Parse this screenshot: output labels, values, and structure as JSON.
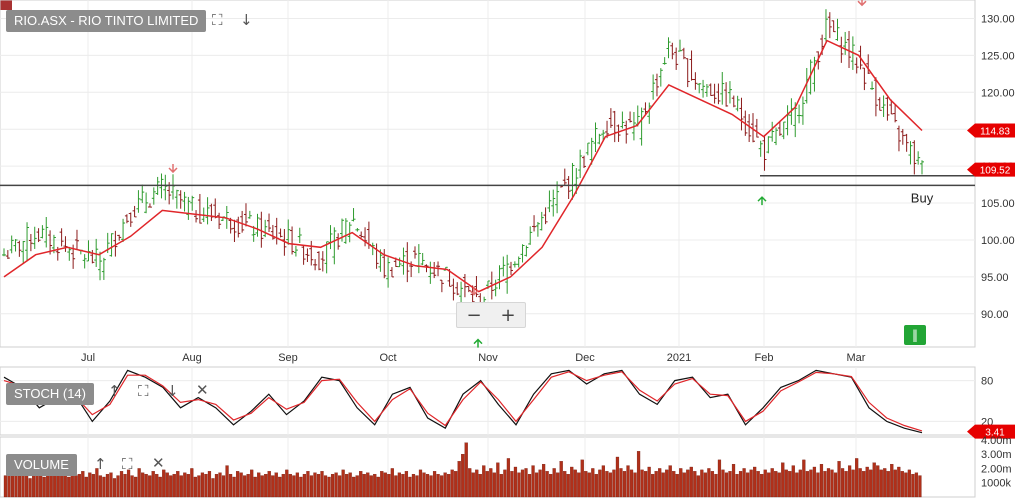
{
  "toolbar": {
    "main_title": "RIO.ASX - RIO TINTO LIMITED",
    "stoch_title": "STOCH (14)",
    "volume_title": "VOLUME",
    "expand_icon": "expand-icon",
    "download_icon": "download-icon",
    "close_icon": "close-icon",
    "zoom_out": "−",
    "zoom_in": "+",
    "green_marker": "‖"
  },
  "colors": {
    "ma_line": "#e0262a",
    "up_bar": "#2e9b2e",
    "down_bar": "#8b1a1a",
    "volume_bar": "#b0301a",
    "stoch_k": "#111111",
    "stoch_d": "#e0262a",
    "badge": "#e60000",
    "support_line": "#444444",
    "down_arrow": "#e07070",
    "up_arrow": "#22aa33"
  },
  "chart_data": [
    {
      "type": "line",
      "panel": "price",
      "title": "RIO.ASX - RIO TINTO LIMITED",
      "x_tick_labels": [
        "Jul",
        "Aug",
        "Sep",
        "Oct",
        "Nov",
        "Dec",
        "2021",
        "Feb",
        "Mar"
      ],
      "y_ticks": [
        90.0,
        95.0,
        100.0,
        105.0,
        110.0,
        115.0,
        120.0,
        125.0,
        130.0
      ],
      "y_tick_labels": [
        "90.00",
        "95.00",
        "100.00",
        "105.00",
        "110.00",
        "115.00",
        "120.00",
        "125.00",
        "130.00"
      ],
      "ylim": [
        85.5,
        132.5
      ],
      "grid": true,
      "price_series_points": [
        {
          "x": "start",
          "y": 98.0
        },
        {
          "x": "Jun end",
          "y": 101.0
        },
        {
          "x": "Jul early",
          "y": 99.0
        },
        {
          "x": "Jul mid",
          "y": 97.0
        },
        {
          "x": "Jul late",
          "y": 104.0
        },
        {
          "x": "Jul end",
          "y": 107.0
        },
        {
          "x": "Aug early",
          "y": 104.0
        },
        {
          "x": "Aug mid",
          "y": 103.0
        },
        {
          "x": "Aug late",
          "y": 101.5
        },
        {
          "x": "Sep early",
          "y": 100.0
        },
        {
          "x": "Sep mid",
          "y": 97.5
        },
        {
          "x": "Sep late",
          "y": 103.0
        },
        {
          "x": "Oct early",
          "y": 96.0
        },
        {
          "x": "Oct mid",
          "y": 97.5
        },
        {
          "x": "Oct late",
          "y": 95.0
        },
        {
          "x": "Nov early",
          "y": 91.5
        },
        {
          "x": "Nov mid",
          "y": 97.0
        },
        {
          "x": "Nov late",
          "y": 103.0
        },
        {
          "x": "Dec early",
          "y": 109.0
        },
        {
          "x": "Dec mid",
          "y": 116.0
        },
        {
          "x": "Dec late",
          "y": 115.0
        },
        {
          "x": "2021 early",
          "y": 126.0
        },
        {
          "x": "Jan mid",
          "y": 121.0
        },
        {
          "x": "Jan late",
          "y": 119.0
        },
        {
          "x": "Feb early",
          "y": 112.0
        },
        {
          "x": "Feb mid",
          "y": 117.0
        },
        {
          "x": "Feb late",
          "y": 129.0
        },
        {
          "x": "Mar early",
          "y": 124.0
        },
        {
          "x": "Mar mid",
          "y": 116.0
        },
        {
          "x": "end",
          "y": 109.52
        }
      ],
      "series": [
        {
          "name": "",
          "values": [
            95.0,
            98.0,
            99.0,
            98.0,
            100.5,
            104.0,
            103.5,
            103.0,
            101.5,
            99.5,
            99.0,
            101.0,
            98.0,
            96.5,
            96.0,
            93.0,
            95.0,
            99.0,
            106.0,
            114.0,
            115.5,
            121.0,
            119.0,
            117.0,
            114.0,
            118.0,
            127.0,
            125.0,
            119.0,
            114.83
          ]
        }
      ],
      "last_price_label": "109.52",
      "ma_label": "114.83",
      "horizontal_lines": [
        107.4,
        108.7
      ],
      "annotations": [
        "Buy"
      ]
    },
    {
      "type": "line",
      "panel": "stochastic",
      "title": "STOCH (14)",
      "y_tick_labels": [
        "80",
        "20"
      ],
      "ylim": [
        0,
        100
      ],
      "last_value_label": "3.41",
      "series": [
        {
          "name": "",
          "values": [
            85,
            70,
            40,
            55,
            60,
            20,
            50,
            95,
            85,
            70,
            40,
            55,
            40,
            15,
            35,
            60,
            30,
            50,
            85,
            80,
            40,
            15,
            60,
            70,
            25,
            10,
            60,
            80,
            45,
            15,
            60,
            90,
            95,
            75,
            90,
            95,
            60,
            45,
            80,
            85,
            55,
            60,
            15,
            40,
            70,
            80,
            95,
            90,
            85,
            40,
            20,
            10,
            3.41
          ]
        },
        {
          "name": "",
          "values": [
            80,
            72,
            50,
            52,
            58,
            30,
            45,
            88,
            88,
            72,
            48,
            52,
            45,
            22,
            32,
            55,
            38,
            48,
            80,
            82,
            48,
            20,
            52,
            68,
            32,
            14,
            52,
            78,
            52,
            20,
            52,
            85,
            93,
            80,
            88,
            93,
            66,
            50,
            75,
            83,
            60,
            58,
            20,
            35,
            65,
            78,
            92,
            90,
            86,
            48,
            25,
            14,
            6
          ]
        }
      ]
    },
    {
      "type": "bar",
      "panel": "volume",
      "title": "VOLUME",
      "y_tick_labels": [
        "4.00m",
        "3.00m",
        "2.00m",
        "1000k"
      ],
      "y_ticks": [
        4.0,
        3.0,
        2.0,
        1.0
      ],
      "ylim": [
        0,
        4.2
      ],
      "values": [
        1.5,
        1.6,
        1.7,
        1.8,
        1.5,
        1.6,
        1.7,
        1.3,
        1.9,
        1.5,
        1.8,
        1.4,
        1.6,
        1.7,
        1.5,
        1.8,
        1.6,
        2.3,
        1.4,
        1.7,
        1.5,
        1.6,
        1.8,
        1.4,
        1.7,
        1.6,
        2.0,
        1.5,
        1.4,
        1.6,
        1.7,
        1.3,
        1.5,
        1.8,
        1.6,
        1.9,
        1.5,
        1.4,
        2.0,
        1.7,
        1.6,
        1.5,
        1.8,
        1.6,
        1.4,
        1.9,
        1.7,
        1.5,
        1.6,
        1.8,
        1.5,
        1.7,
        1.6,
        2.0,
        1.4,
        1.5,
        1.7,
        1.6,
        1.8,
        1.3,
        1.6,
        1.7,
        1.5,
        2.2,
        1.6,
        1.4,
        1.8,
        1.7,
        1.5,
        1.6,
        1.9,
        1.4,
        1.7,
        1.5,
        1.6,
        1.8,
        1.5,
        1.7,
        1.4,
        1.6,
        1.9,
        1.6,
        1.5,
        1.7,
        1.4,
        1.6,
        1.8,
        1.5,
        1.7,
        1.6,
        1.8,
        1.5,
        1.4,
        1.6,
        1.7,
        1.5,
        1.9,
        1.6,
        1.7,
        1.4,
        1.5,
        1.8,
        1.6,
        1.7,
        1.5,
        1.6,
        1.4,
        1.8,
        1.7,
        1.6,
        2.0,
        1.5,
        1.7,
        1.6,
        1.8,
        1.4,
        1.6,
        1.5,
        1.9,
        1.7,
        1.6,
        1.5,
        1.8,
        1.6,
        1.5,
        1.7,
        1.6,
        1.9,
        1.8,
        2.5,
        3.0,
        3.8,
        2.0,
        1.7,
        1.9,
        1.6,
        2.2,
        1.8,
        2.0,
        1.7,
        2.4,
        1.6,
        1.9,
        2.7,
        1.8,
        2.1,
        1.7,
        1.9,
        2.0,
        1.6,
        2.2,
        1.7,
        1.9,
        2.3,
        1.8,
        1.6,
        2.0,
        1.7,
        2.5,
        1.8,
        1.6,
        2.1,
        1.9,
        1.7,
        2.6,
        1.8,
        1.7,
        2.0,
        1.6,
        1.9,
        2.2,
        1.8,
        1.7,
        1.9,
        2.8,
        2.0,
        1.8,
        2.2,
        1.9,
        1.7,
        3.2,
        1.9,
        1.8,
        2.1,
        1.6,
        1.8,
        2.0,
        1.7,
        1.9,
        2.2,
        1.8,
        1.6,
        2.0,
        1.7,
        1.9,
        2.1,
        1.8,
        1.5,
        1.9,
        1.7,
        2.0,
        1.8,
        1.6,
        2.6,
        1.9,
        1.7,
        1.8,
        2.3,
        1.6,
        1.8,
        2.0,
        1.7,
        1.9,
        2.1,
        1.8,
        1.6,
        1.9,
        1.7,
        2.0,
        1.8,
        1.7,
        2.4,
        1.9,
        1.8,
        2.2,
        1.7,
        1.9,
        2.6,
        1.8,
        1.9,
        2.1,
        1.7,
        2.3,
        1.8,
        2.0,
        1.9,
        1.7,
        2.5,
        2.0,
        1.8,
        2.2,
        1.9,
        2.7,
        2.0,
        1.8,
        2.1,
        1.9,
        2.4,
        2.2,
        1.9,
        2.0,
        1.8,
        2.3,
        1.9,
        2.1,
        1.8,
        1.7,
        1.9,
        1.6,
        1.7,
        1.5
      ]
    }
  ]
}
